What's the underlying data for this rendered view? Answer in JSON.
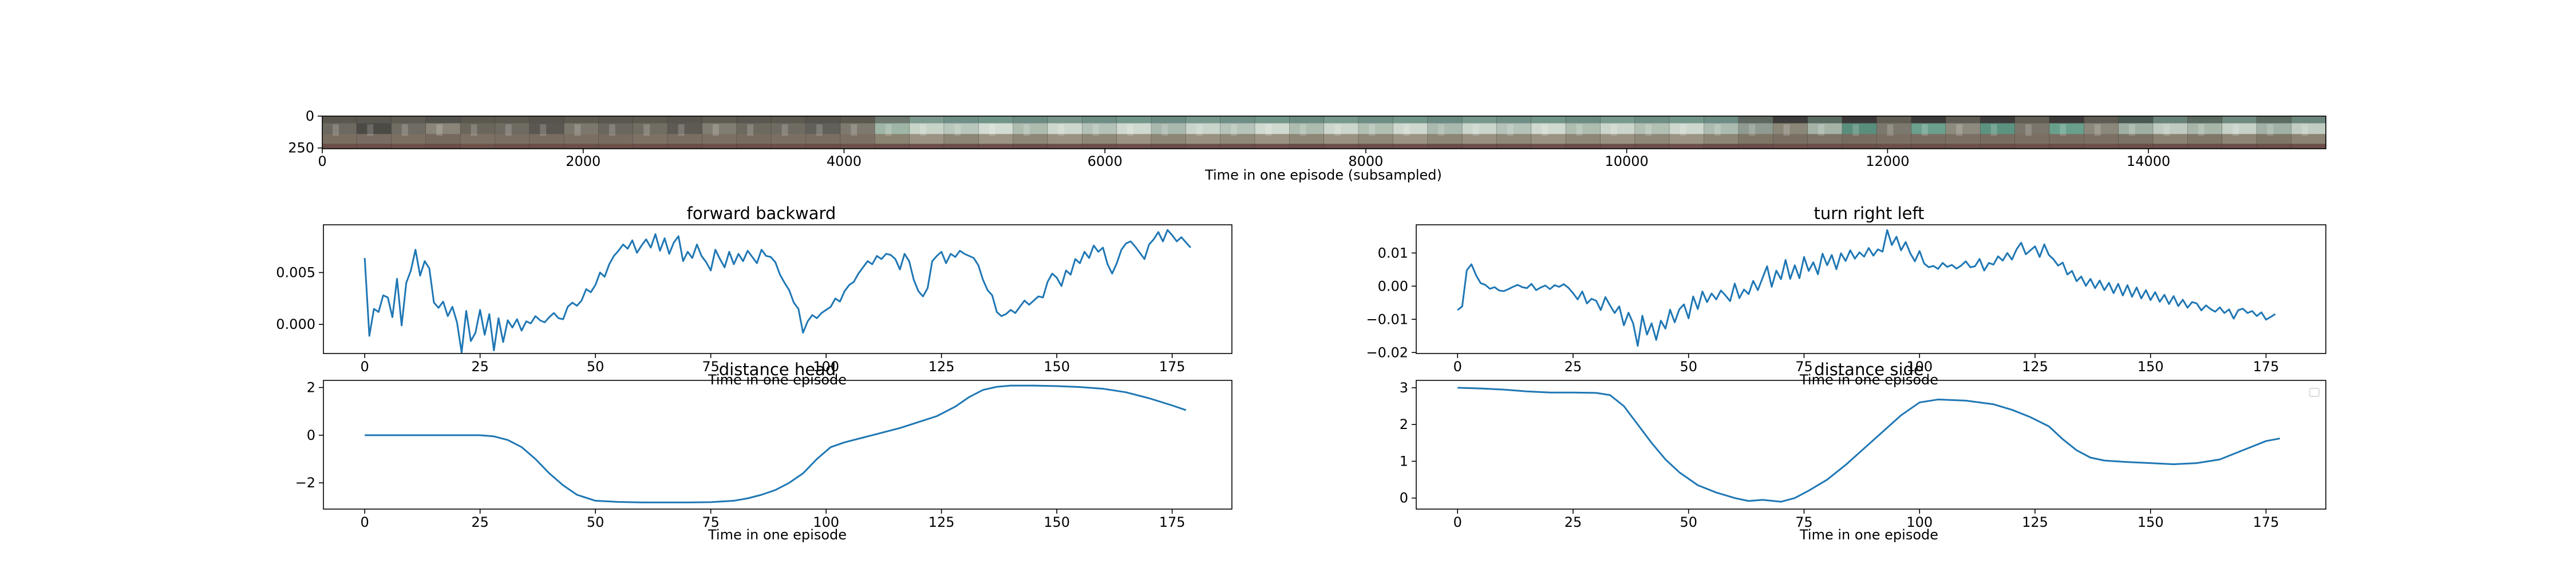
{
  "chart_data": [
    {
      "type": "image-strip",
      "xlabel": "Time in one episode (subsampled)",
      "xticks": [
        0,
        2000,
        4000,
        6000,
        8000,
        10000,
        12000,
        14000
      ],
      "xlim": [
        0,
        15360
      ],
      "yticks": [
        0,
        250
      ],
      "ylim": [
        256,
        0
      ],
      "frames": [
        [
          "#5b574f",
          "#6c6960",
          "#7a6e61",
          "#6a4f48"
        ],
        [
          "#5a5750",
          "#4c4a45",
          "#786d62",
          "#6a4e47"
        ],
        [
          "#5e5b53",
          "#706c63",
          "#7c7063",
          "#6b5049"
        ],
        [
          "#55534d",
          "#8a8579",
          "#76695d",
          "#694d46"
        ],
        [
          "#5b5850",
          "#6b665c",
          "#7d7165",
          "#6d524a"
        ],
        [
          "#5c5951",
          "#6f6b62",
          "#7a6f63",
          "#6a4f48"
        ],
        [
          "#57544d",
          "#5a5750",
          "#796d61",
          "#6a4e47"
        ],
        [
          "#5d5a52",
          "#7c776c",
          "#7b6f63",
          "#6b5049"
        ],
        [
          "#5a574f",
          "#6a665d",
          "#786c60",
          "#6c5048"
        ],
        [
          "#5c5951",
          "#716d63",
          "#7e7265",
          "#6a4f48"
        ],
        [
          "#58554e",
          "#5e5a53",
          "#7a6e62",
          "#694e47"
        ],
        [
          "#5e5b53",
          "#827d72",
          "#7c7064",
          "#6b5049"
        ],
        [
          "#5a5750",
          "#6d695f",
          "#786c60",
          "#6a4e47"
        ],
        [
          "#5c5951",
          "#6f6b62",
          "#7b6f63",
          "#6b4f48"
        ],
        [
          "#57544d",
          "#62605a",
          "#7a6e62",
          "#694e47"
        ],
        [
          "#5b584f",
          "#7e796e",
          "#7c7064",
          "#6b5049"
        ],
        [
          "#6e7a70",
          "#9fb6a6",
          "#8a8472",
          "#6b4f4a"
        ],
        [
          "#7d9a8e",
          "#c8d3c8",
          "#9a9384",
          "#6d4e4b"
        ],
        [
          "#6f8f86",
          "#b9c6bb",
          "#8b8676",
          "#6b4d49"
        ],
        [
          "#72958a",
          "#d3dcd2",
          "#9c9586",
          "#6e4f4b"
        ],
        [
          "#6c8b82",
          "#aebbaf",
          "#8d8777",
          "#6a4c48"
        ],
        [
          "#78968b",
          "#cdd7cd",
          "#999283",
          "#6d4e4a"
        ],
        [
          "#6e8e85",
          "#b3c1b6",
          "#8e8878",
          "#6b4d49"
        ],
        [
          "#74978c",
          "#d0d9cf",
          "#9b9485",
          "#6e4f4b"
        ],
        [
          "#6b8a81",
          "#a9b8ac",
          "#8c8676",
          "#6a4c48"
        ],
        [
          "#76988d",
          "#c9d4ca",
          "#989182",
          "#6d4e4a"
        ],
        [
          "#6f8f86",
          "#b5c3b8",
          "#8f8979",
          "#6b4d49"
        ],
        [
          "#73968b",
          "#d1dad0",
          "#9a9384",
          "#6e4f4b"
        ],
        [
          "#6c8b82",
          "#adbcaf",
          "#8d8777",
          "#6a4c48"
        ],
        [
          "#77998e",
          "#ccd6cc",
          "#999283",
          "#6d4e4a"
        ],
        [
          "#6e8e85",
          "#b1bfb3",
          "#8e8878",
          "#6b4d49"
        ],
        [
          "#74978c",
          "#cfd8ce",
          "#9b9485",
          "#6e4f4b"
        ],
        [
          "#6b8a81",
          "#aab9ad",
          "#8c8676",
          "#6a4c48"
        ],
        [
          "#76988d",
          "#cad5cb",
          "#989182",
          "#6d4e4a"
        ],
        [
          "#6f8f86",
          "#b4c2b7",
          "#8f8979",
          "#6b4d49"
        ],
        [
          "#73968b",
          "#d0d9cf",
          "#9a9384",
          "#6e4f4b"
        ],
        [
          "#6c8b82",
          "#aebdb0",
          "#8d8777",
          "#6a4c48"
        ],
        [
          "#77998e",
          "#cbd5cb",
          "#999283",
          "#6d4e4a"
        ],
        [
          "#6e8e85",
          "#b2c0b4",
          "#8e8878",
          "#6b4d49"
        ],
        [
          "#74978c",
          "#ced7cd",
          "#9b9485",
          "#6e4f4b"
        ],
        [
          "#6d8c83",
          "#acbbaf",
          "#8c8676",
          "#6a4c48"
        ],
        [
          "#5f6860",
          "#8f9a90",
          "#7e7767",
          "#684c47"
        ],
        [
          "#3e3c3a",
          "#8a8678",
          "#7a6f63",
          "#6a4f48"
        ],
        [
          "#5a6b62",
          "#a5b3a7",
          "#7c7466",
          "#6b4e49"
        ],
        [
          "#3b3937",
          "#5a8e7c",
          "#786d61",
          "#694e47"
        ],
        [
          "#615d55",
          "#7c786d",
          "#7b6f63",
          "#6b5049"
        ],
        [
          "#3c3a38",
          "#6aa08c",
          "#7a6e62",
          "#6a4e47"
        ],
        [
          "#5f5c54",
          "#8e8a7e",
          "#7c7064",
          "#6b5049"
        ],
        [
          "#3e3c3a",
          "#5c9380",
          "#786d61",
          "#694e47"
        ],
        [
          "#625e56",
          "#7a766b",
          "#7b6f63",
          "#6b5049"
        ],
        [
          "#3d3b39",
          "#68a08b",
          "#7a6e62",
          "#6a4e47"
        ],
        [
          "#5e5b53",
          "#8b877b",
          "#7c7064",
          "#6b5049"
        ],
        [
          "#4a5a52",
          "#9fb0a3",
          "#7b7365",
          "#6a4e48"
        ],
        [
          "#6a8378",
          "#bfcac0",
          "#8a8373",
          "#6b4d49"
        ],
        [
          "#5a6a61",
          "#a8b6aa",
          "#7f7869",
          "#6a4d48"
        ],
        [
          "#6f8a7f",
          "#c6d1c7",
          "#8d8676",
          "#6c4e4a"
        ],
        [
          "#5c6c63",
          "#a2b1a5",
          "#7e7768",
          "#6a4d48"
        ],
        [
          "#6c867b",
          "#c1ccc2",
          "#8b8474",
          "#6b4e49"
        ]
      ]
    },
    {
      "type": "line",
      "title": "forward backward",
      "xlabel": "Time in one episode",
      "xlim": [
        -8.95,
        187.95
      ],
      "ylim": [
        -0.0028,
        0.0096
      ],
      "xticks": [
        0,
        25,
        50,
        75,
        100,
        125,
        150,
        175
      ],
      "yticks": [
        0.0,
        0.005
      ],
      "yticklabels": [
        "0.000",
        "0.005"
      ],
      "color": "#1f77b4",
      "x_start": 0,
      "values": [
        0.0064,
        -0.0011,
        0.0015,
        0.0012,
        0.0028,
        0.0026,
        0.0007,
        0.0044,
        -0.0001,
        0.004,
        0.0052,
        0.0072,
        0.0047,
        0.0061,
        0.0054,
        0.0021,
        0.0016,
        0.0022,
        0.0008,
        0.0017,
        0.0002,
        -0.0027,
        0.0013,
        -0.0016,
        -0.0008,
        0.0014,
        -0.001,
        0.001,
        -0.0025,
        0.0006,
        -0.0017,
        0.0004,
        -0.0003,
        0.0005,
        -0.0006,
        0.0003,
        0.0001,
        0.0008,
        0.0004,
        0.0002,
        0.0007,
        0.0011,
        0.0006,
        0.0005,
        0.0017,
        0.0021,
        0.0018,
        0.0023,
        0.0034,
        0.0031,
        0.0038,
        0.005,
        0.0046,
        0.0058,
        0.0066,
        0.0071,
        0.0077,
        0.0073,
        0.0081,
        0.0069,
        0.0076,
        0.0082,
        0.0074,
        0.0087,
        0.0071,
        0.0083,
        0.0068,
        0.0079,
        0.0085,
        0.0061,
        0.007,
        0.0064,
        0.0077,
        0.0066,
        0.006,
        0.0052,
        0.0072,
        0.0063,
        0.0055,
        0.007,
        0.0058,
        0.0068,
        0.0061,
        0.0071,
        0.0065,
        0.0059,
        0.0072,
        0.0066,
        0.0065,
        0.006,
        0.0048,
        0.004,
        0.0033,
        0.0021,
        0.0015,
        -0.0008,
        0.0003,
        0.0009,
        0.0006,
        0.0011,
        0.0014,
        0.0017,
        0.0025,
        0.0022,
        0.0032,
        0.0038,
        0.0041,
        0.0049,
        0.0055,
        0.0061,
        0.0058,
        0.0066,
        0.0063,
        0.0068,
        0.0067,
        0.0063,
        0.0053,
        0.0068,
        0.0061,
        0.0043,
        0.0032,
        0.0027,
        0.0035,
        0.0061,
        0.0066,
        0.007,
        0.0059,
        0.0068,
        0.0065,
        0.0071,
        0.0068,
        0.0066,
        0.0064,
        0.0057,
        0.0043,
        0.0033,
        0.0028,
        0.0012,
        0.0008,
        0.001,
        0.0014,
        0.0011,
        0.0017,
        0.0023,
        0.0019,
        0.0023,
        0.0027,
        0.0026,
        0.0041,
        0.0049,
        0.0045,
        0.0037,
        0.0052,
        0.0048,
        0.0063,
        0.0059,
        0.007,
        0.0064,
        0.0076,
        0.007,
        0.0074,
        0.0058,
        0.0049,
        0.0059,
        0.0072,
        0.0078,
        0.008,
        0.0075,
        0.0069,
        0.0063,
        0.0077,
        0.0082,
        0.0089,
        0.008,
        0.0091,
        0.0086,
        0.008,
        0.0084,
        0.0079,
        0.0074
      ]
    },
    {
      "type": "line",
      "title": "turn right left",
      "xlabel": "Time in one episode",
      "xlim": [
        -8.95,
        187.95
      ],
      "ylim": [
        -0.0203,
        0.0185
      ],
      "xticks": [
        0,
        25,
        50,
        75,
        100,
        125,
        150,
        175
      ],
      "yticks": [
        -0.02,
        -0.01,
        0.0,
        0.01
      ],
      "yticklabels": [
        "−0.02",
        "−0.01",
        "0.00",
        "0.01"
      ],
      "color": "#1f77b4",
      "x_start": 0,
      "values": [
        -0.0072,
        -0.0061,
        0.0048,
        0.0066,
        0.0033,
        0.0009,
        0.0004,
        -0.0008,
        -0.0003,
        -0.0013,
        -0.0015,
        -0.0009,
        -0.0002,
        0.0004,
        -0.0003,
        -0.0006,
        0.0007,
        -0.0012,
        -0.0004,
        0.0002,
        -0.0009,
        0.0003,
        -0.0002,
        0.0006,
        -0.0005,
        -0.0021,
        -0.004,
        -0.0016,
        -0.0052,
        -0.0038,
        -0.0044,
        -0.0072,
        -0.0033,
        -0.0058,
        -0.0081,
        -0.0061,
        -0.0118,
        -0.008,
        -0.0112,
        -0.018,
        -0.0089,
        -0.0146,
        -0.0112,
        -0.0162,
        -0.0104,
        -0.0128,
        -0.0071,
        -0.0109,
        -0.007,
        -0.0055,
        -0.0097,
        -0.0031,
        -0.0069,
        -0.0016,
        -0.0048,
        -0.0022,
        -0.004,
        -0.0013,
        -0.0028,
        -0.0045,
        0.0008,
        -0.0036,
        -0.001,
        -0.0024,
        0.0016,
        -0.0012,
        0.0024,
        0.006,
        -0.0002,
        0.0047,
        0.0021,
        0.0079,
        0.0022,
        0.0063,
        0.0024,
        0.0088,
        0.0046,
        0.0072,
        0.0036,
        0.0098,
        0.0063,
        0.0094,
        0.0051,
        0.0099,
        0.0076,
        0.0108,
        0.0083,
        0.0102,
        0.0089,
        0.0115,
        0.0092,
        0.0111,
        0.0104,
        0.0169,
        0.0124,
        0.0149,
        0.0108,
        0.0133,
        0.0099,
        0.0075,
        0.0106,
        0.0068,
        0.0057,
        0.0061,
        0.0052,
        0.007,
        0.0058,
        0.0064,
        0.0053,
        0.0062,
        0.0075,
        0.0057,
        0.006,
        0.0082,
        0.0047,
        0.007,
        0.0065,
        0.009,
        0.0077,
        0.01,
        0.008,
        0.0111,
        0.0131,
        0.0096,
        0.0108,
        0.012,
        0.0088,
        0.0126,
        0.0094,
        0.0081,
        0.0062,
        0.0071,
        0.0035,
        0.0046,
        0.0015,
        0.0029,
        0.0001,
        0.0022,
        -0.0006,
        0.0017,
        -0.0012,
        0.001,
        -0.0021,
        0.0007,
        -0.0028,
        0.0003,
        -0.0032,
        -0.0004,
        -0.0037,
        -0.0012,
        -0.0042,
        -0.0018,
        -0.0047,
        -0.0026,
        -0.0054,
        -0.003,
        -0.006,
        -0.0041,
        -0.0065,
        -0.0048,
        -0.0052,
        -0.0073,
        -0.0058,
        -0.0069,
        -0.0077,
        -0.0064,
        -0.0081,
        -0.007,
        -0.0098,
        -0.0072,
        -0.0068,
        -0.0081,
        -0.0075,
        -0.009,
        -0.0079,
        -0.0101,
        -0.0093,
        -0.0084
      ]
    },
    {
      "type": "line",
      "title": "distance head",
      "xlabel": "Time in one episode",
      "xlim": [
        -8.95,
        187.95
      ],
      "ylim": [
        -3.1,
        2.3
      ],
      "xticks": [
        0,
        25,
        50,
        75,
        100,
        125,
        150,
        175
      ],
      "yticks": [
        -2,
        0,
        2
      ],
      "yticklabels": [
        "−2",
        "0",
        "2"
      ],
      "color": "#1f77b4",
      "x": [
        0,
        5,
        10,
        15,
        20,
        25,
        28,
        31,
        34,
        37,
        40,
        43,
        46,
        50,
        55,
        60,
        65,
        70,
        75,
        80,
        83,
        86,
        89,
        92,
        95,
        98,
        101,
        104,
        108,
        112,
        116,
        120,
        124,
        128,
        131,
        134,
        137,
        140,
        145,
        150,
        155,
        160,
        165,
        170,
        175,
        178
      ],
      "values": [
        0.0,
        0.0,
        0.0,
        0.0,
        0.0,
        0.0,
        -0.05,
        -0.2,
        -0.5,
        -1.0,
        -1.6,
        -2.1,
        -2.5,
        -2.75,
        -2.8,
        -2.82,
        -2.82,
        -2.82,
        -2.81,
        -2.75,
        -2.65,
        -2.5,
        -2.3,
        -2.0,
        -1.6,
        -1.0,
        -0.5,
        -0.3,
        -0.1,
        0.1,
        0.3,
        0.55,
        0.8,
        1.2,
        1.6,
        1.9,
        2.03,
        2.08,
        2.08,
        2.06,
        2.02,
        1.95,
        1.8,
        1.55,
        1.25,
        1.05
      ]
    },
    {
      "type": "line",
      "title": "distance side",
      "xlabel": "Time in one episode",
      "xlim": [
        -8.95,
        187.95
      ],
      "ylim": [
        -0.3,
        3.2
      ],
      "xticks": [
        0,
        25,
        50,
        75,
        100,
        125,
        150,
        175
      ],
      "yticks": [
        0,
        1,
        2,
        3
      ],
      "color": "#1f77b4",
      "legend": "top-right",
      "x": [
        0,
        5,
        10,
        15,
        20,
        25,
        30,
        33,
        36,
        39,
        42,
        45,
        48,
        52,
        56,
        60,
        63,
        66,
        70,
        73,
        76,
        80,
        84,
        88,
        92,
        96,
        100,
        104,
        110,
        116,
        120,
        124,
        128,
        131,
        134,
        137,
        140,
        145,
        150,
        155,
        160,
        165,
        170,
        175,
        178
      ],
      "values": [
        3.0,
        2.98,
        2.95,
        2.9,
        2.87,
        2.87,
        2.86,
        2.8,
        2.5,
        2.0,
        1.5,
        1.05,
        0.7,
        0.35,
        0.15,
        0.0,
        -0.08,
        -0.05,
        -0.1,
        0.0,
        0.2,
        0.5,
        0.9,
        1.35,
        1.8,
        2.25,
        2.6,
        2.68,
        2.65,
        2.55,
        2.4,
        2.2,
        1.95,
        1.6,
        1.3,
        1.1,
        1.02,
        0.98,
        0.95,
        0.92,
        0.95,
        1.05,
        1.3,
        1.55,
        1.62
      ]
    }
  ]
}
